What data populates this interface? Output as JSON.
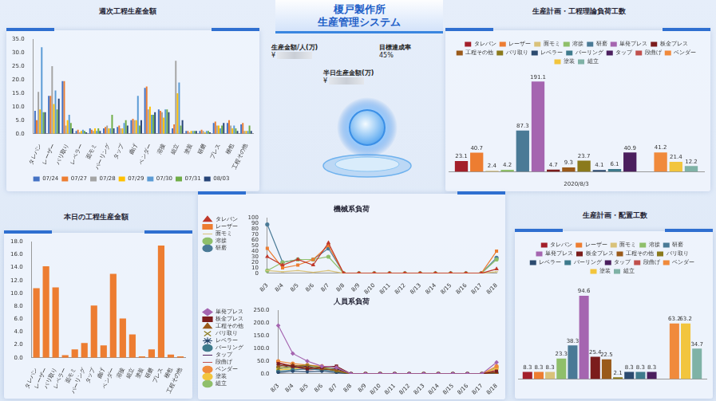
{
  "header": {
    "title": [
      "榎戸製作所",
      "生産管理システム"
    ]
  },
  "kpis": [
    {
      "label": "生産金額/人(万)",
      "value": "¥"
    },
    {
      "label": "目標達成率",
      "value": "45%"
    },
    {
      "label": "半日生産金額(万)",
      "value": "¥"
    }
  ],
  "chart_data": [
    {
      "type": "bar",
      "title": "週次工程生産金額",
      "categories": [
        "タレパン",
        "レーザー",
        "バリ取り",
        "レベラー",
        "面モミ",
        "バーリング",
        "タップ",
        "曲げ",
        "ベンダー",
        "溶接",
        "組立",
        "塗装",
        "研磨",
        "プレス",
        "梱包",
        "工程その他"
      ],
      "series": [
        {
          "name": "07/24",
          "color": "#4472c4",
          "values": [
            8.5,
            14,
            19.5,
            1,
            2,
            2,
            2.5,
            5,
            17,
            9,
            2,
            1,
            1,
            4,
            4,
            3.5
          ]
        },
        {
          "name": "07/27",
          "color": "#ed7d31",
          "values": [
            5,
            14,
            19.5,
            1.5,
            1.5,
            2.5,
            3,
            5.5,
            17.5,
            8.5,
            3.5,
            1,
            1.5,
            4.5,
            5,
            4
          ]
        },
        {
          "name": "07/28",
          "color": "#a5a5a5",
          "values": [
            15.5,
            25,
            3,
            0.5,
            1,
            3,
            2,
            5,
            9,
            8,
            27,
            0.5,
            1,
            3,
            3,
            1
          ]
        },
        {
          "name": "07/29",
          "color": "#ffc000",
          "values": [
            9,
            11,
            5,
            1,
            2,
            2,
            2,
            5,
            10,
            6,
            15,
            1,
            0.5,
            3,
            2,
            1
          ]
        },
        {
          "name": "07/30",
          "color": "#5b9bd5",
          "values": [
            32,
            16,
            7,
            1.5,
            1,
            2,
            4,
            14,
            7,
            9,
            19,
            1,
            1,
            2,
            3,
            1
          ]
        },
        {
          "name": "07/31",
          "color": "#70ad47",
          "values": [
            8,
            9,
            4,
            1,
            2,
            7,
            5,
            3,
            7,
            9,
            3,
            1,
            1,
            3,
            2,
            3
          ]
        },
        {
          "name": "08/03",
          "color": "#264478",
          "values": [
            8,
            13,
            2,
            0.5,
            1,
            2,
            3,
            5,
            8,
            8,
            5,
            1,
            0.5,
            4,
            1,
            1
          ]
        }
      ],
      "ylim": [
        0,
        35
      ],
      "yticks": [
        {
          "value": 0,
          "label": "0.0"
        },
        {
          "value": 5,
          "label": "5.0"
        },
        {
          "value": 10,
          "label": "10.0"
        },
        {
          "value": 15,
          "label": "15.0"
        },
        {
          "value": 20,
          "label": "20.0"
        },
        {
          "value": 25,
          "label": "25.0"
        },
        {
          "value": 30,
          "label": "30.0"
        },
        {
          "value": 35,
          "label": "35.0"
        }
      ],
      "legend": "bottom",
      "grid": false
    },
    {
      "type": "bar",
      "title": "生産計画・工程理論負荷工数",
      "categories": [
        "2020/8/3"
      ],
      "series": [
        {
          "name": "タレパン",
          "color": "#a31f2a",
          "values": [
            23.1
          ]
        },
        {
          "name": "レーザー",
          "color": "#ed7d31",
          "values": [
            40.7
          ]
        },
        {
          "name": "面モミ",
          "color": "#d9c27a",
          "values": [
            2.4
          ]
        },
        {
          "name": "溶接",
          "color": "#8fbf6a",
          "values": [
            4.2
          ]
        },
        {
          "name": "研磨",
          "color": "#4a7a96",
          "values": [
            87.3
          ]
        },
        {
          "name": "単発プレス",
          "color": "#a565b0",
          "values": [
            191.1
          ]
        },
        {
          "name": "板金プレス",
          "color": "#7b1c1c",
          "values": [
            4.7
          ]
        },
        {
          "name": "工程その他",
          "color": "#9a5a1a",
          "values": [
            9.3
          ]
        },
        {
          "name": "バリ取り",
          "color": "#8b7a1c",
          "values": [
            23.7
          ]
        },
        {
          "name": "レベラー",
          "color": "#2b4a6f",
          "values": [
            4.1
          ]
        },
        {
          "name": "バーリング",
          "color": "#3e7a8c",
          "values": [
            6.1
          ]
        },
        {
          "name": "タップ",
          "color": "#4b1f5e",
          "values": [
            40.9
          ]
        },
        {
          "name": "段曲げ",
          "color": "#c0504d",
          "values": [
            null
          ]
        },
        {
          "name": "ベンダー",
          "color": "#f08a3c",
          "values": [
            41.2
          ]
        },
        {
          "name": "塗装",
          "color": "#f2c53d",
          "values": [
            21.4
          ]
        },
        {
          "name": "組立",
          "color": "#7fb2a6",
          "values": [
            12.2
          ]
        }
      ],
      "ylim": [
        0,
        210
      ],
      "legend": "top",
      "data_labels": true,
      "tick_labels": "x",
      "grid": false
    },
    {
      "type": "bar",
      "title": "本日の工程生産金額",
      "categories": [
        "タレパン",
        "レーザー",
        "バリ取り",
        "レベラー",
        "面モミ",
        "バーリング",
        "タップ",
        "曲げ",
        "ベンダー",
        "溶接",
        "組立",
        "塗装",
        "研磨",
        "プレス",
        "梱包",
        "工程その他"
      ],
      "values": [
        10.8,
        14.2,
        10.9,
        0.4,
        1.3,
        2.3,
        8.1,
        1.9,
        13,
        6.1,
        3.6,
        0.2,
        1.3,
        17.4,
        0.5,
        0.2
      ],
      "color": "#ed7d31",
      "ylim": [
        0,
        18
      ],
      "yticks": [
        {
          "value": 0,
          "label": "0.0"
        },
        {
          "value": 2,
          "label": "2.0"
        },
        {
          "value": 4,
          "label": "4.0"
        },
        {
          "value": 6,
          "label": "6.0"
        },
        {
          "value": 8,
          "label": "8.0"
        },
        {
          "value": 10,
          "label": "10.0"
        },
        {
          "value": 12,
          "label": "12.0"
        },
        {
          "value": 14,
          "label": "14.0"
        },
        {
          "value": 16,
          "label": "16.0"
        },
        {
          "value": 18,
          "label": "18.0"
        }
      ],
      "grid": false
    },
    {
      "type": "line",
      "title": "機械系負荷",
      "categories": [
        "8/3",
        "8/4",
        "8/5",
        "8/6",
        "8/7",
        "8/8",
        "8/9",
        "8/10",
        "8/11",
        "8/12",
        "8/13",
        "8/14",
        "8/15",
        "8/16",
        "8/17",
        "8/18"
      ],
      "series": [
        {
          "name": "タレパン",
          "color": "#c0392b",
          "marker": "triangle",
          "values": [
            30,
            15,
            25,
            15,
            55,
            0,
            0,
            0,
            0,
            0,
            0,
            0,
            0,
            0,
            0,
            8
          ]
        },
        {
          "name": "レーザー",
          "color": "#ed7d31",
          "marker": "square",
          "values": [
            45,
            10,
            15,
            25,
            50,
            0,
            0,
            0,
            0,
            0,
            0,
            0,
            0,
            0,
            0,
            40
          ]
        },
        {
          "name": "面モミ",
          "color": "#d9c27a",
          "marker": "dash",
          "values": [
            5,
            3,
            5,
            2,
            5,
            0,
            0,
            0,
            0,
            0,
            0,
            0,
            0,
            0,
            0,
            3
          ]
        },
        {
          "name": "溶接",
          "color": "#8fbf6a",
          "marker": "circle",
          "values": [
            5,
            20,
            25,
            25,
            30,
            0,
            0,
            0,
            0,
            0,
            0,
            0,
            0,
            0,
            0,
            25
          ]
        },
        {
          "name": "研磨",
          "color": "#4a7a96",
          "marker": "circle",
          "values": [
            88,
            20,
            25,
            25,
            45,
            0,
            0,
            0,
            0,
            0,
            0,
            0,
            0,
            0,
            0,
            28
          ]
        }
      ],
      "ylim": [
        0,
        100
      ],
      "yticks": [
        0,
        10,
        20,
        30,
        40,
        50,
        60,
        70,
        80,
        90,
        100
      ],
      "legend": "left",
      "grid": false
    },
    {
      "type": "line",
      "title": "人員系負荷",
      "categories": [
        "8/3",
        "8/4",
        "8/5",
        "8/6",
        "8/7",
        "8/8",
        "8/9",
        "8/10",
        "8/11",
        "8/12",
        "8/13",
        "8/14",
        "8/15",
        "8/16",
        "8/17",
        "8/18"
      ],
      "series": [
        {
          "name": "単発プレス",
          "color": "#a565b0",
          "marker": "diamond",
          "values": [
            190,
            80,
            50,
            30,
            25,
            0,
            0,
            0,
            0,
            0,
            0,
            0,
            0,
            0,
            0,
            45
          ]
        },
        {
          "name": "板金プレス",
          "color": "#7b1c1c",
          "marker": "square",
          "values": [
            40,
            30,
            20,
            25,
            30,
            0,
            0,
            0,
            0,
            0,
            0,
            0,
            0,
            0,
            0,
            10
          ]
        },
        {
          "name": "工程その他",
          "color": "#9a5a1a",
          "marker": "triangle",
          "values": [
            30,
            35,
            25,
            20,
            15,
            0,
            0,
            0,
            0,
            0,
            0,
            0,
            0,
            0,
            0,
            5
          ]
        },
        {
          "name": "バリ取り",
          "color": "#8b7a1c",
          "marker": "cross",
          "values": [
            20,
            30,
            35,
            25,
            10,
            0,
            0,
            0,
            0,
            0,
            0,
            0,
            0,
            0,
            0,
            8
          ]
        },
        {
          "name": "レベラー",
          "color": "#2b4a6f",
          "marker": "star",
          "values": [
            5,
            10,
            8,
            10,
            5,
            0,
            0,
            0,
            0,
            0,
            0,
            0,
            0,
            0,
            0,
            3
          ]
        },
        {
          "name": "バーリング",
          "color": "#3e7a8c",
          "marker": "circle",
          "values": [
            10,
            15,
            20,
            15,
            10,
            0,
            0,
            0,
            0,
            0,
            0,
            0,
            0,
            0,
            0,
            5
          ]
        },
        {
          "name": "タップ",
          "color": "#4b1f5e",
          "marker": "dash",
          "values": [
            35,
            25,
            30,
            15,
            20,
            0,
            0,
            0,
            0,
            0,
            0,
            0,
            0,
            0,
            0,
            5
          ]
        },
        {
          "name": "段曲げ",
          "color": "#c0504d",
          "marker": "dash",
          "values": [
            45,
            30,
            15,
            20,
            10,
            0,
            0,
            0,
            0,
            0,
            0,
            0,
            0,
            0,
            0,
            15
          ]
        },
        {
          "name": "ベンダー",
          "color": "#f08a3c",
          "marker": "circle",
          "values": [
            50,
            40,
            35,
            30,
            25,
            0,
            0,
            0,
            0,
            0,
            0,
            0,
            0,
            0,
            0,
            30
          ]
        },
        {
          "name": "塗装",
          "color": "#f2c53d",
          "marker": "circle",
          "values": [
            15,
            20,
            25,
            20,
            15,
            0,
            0,
            0,
            0,
            0,
            0,
            0,
            0,
            0,
            0,
            20
          ]
        },
        {
          "name": "組立",
          "color": "#8fbf6a",
          "marker": "circle",
          "values": [
            25,
            20,
            30,
            25,
            20,
            0,
            0,
            0,
            0,
            0,
            0,
            0,
            0,
            0,
            0,
            25
          ]
        }
      ],
      "ylim": [
        0,
        250
      ],
      "yticks": [
        {
          "value": 0,
          "label": "0.0"
        },
        {
          "value": 50,
          "label": "50.0"
        },
        {
          "value": 100,
          "label": "100.0"
        },
        {
          "value": 150,
          "label": "150.0"
        },
        {
          "value": 200,
          "label": "200.0"
        },
        {
          "value": 250,
          "label": "250.0"
        }
      ],
      "legend": "left",
      "grid": false
    },
    {
      "type": "bar",
      "title": "生産計画・配置工数",
      "categories": [
        null
      ],
      "series": [
        {
          "name": "タレパン",
          "color": "#a31f2a",
          "values": [
            8.3
          ]
        },
        {
          "name": "レーザー",
          "color": "#ed7d31",
          "values": [
            8.3
          ]
        },
        {
          "name": "面モミ",
          "color": "#d9c27a",
          "values": [
            8.3
          ]
        },
        {
          "name": "溶接",
          "color": "#8fbf6a",
          "values": [
            23.3
          ]
        },
        {
          "name": "研磨",
          "color": "#4a7a96",
          "values": [
            38.3
          ]
        },
        {
          "name": "単発プレス",
          "color": "#a565b0",
          "values": [
            94.6
          ]
        },
        {
          "name": "板金プレス",
          "color": "#7b1c1c",
          "values": [
            25.4
          ]
        },
        {
          "name": "工程その他",
          "color": "#9a5a1a",
          "values": [
            22.5
          ]
        },
        {
          "name": "バリ取り",
          "color": "#8b7a1c",
          "values": [
            2.1
          ]
        },
        {
          "name": "レベラー",
          "color": "#2b4a6f",
          "values": [
            8.3
          ]
        },
        {
          "name": "バーリング",
          "color": "#3e7a8c",
          "values": [
            8.3
          ]
        },
        {
          "name": "タップ",
          "color": "#4b1f5e",
          "values": [
            8.3
          ]
        },
        {
          "name": "段曲げ",
          "color": "#c0504d",
          "values": [
            null
          ]
        },
        {
          "name": "ベンダー",
          "color": "#f08a3c",
          "values": [
            63.2
          ]
        },
        {
          "name": "塗装",
          "color": "#f2c53d",
          "values": [
            63.2
          ]
        },
        {
          "name": "組立",
          "color": "#7fb2a6",
          "values": [
            34.7
          ]
        }
      ],
      "ylim": [
        0,
        110
      ],
      "legend": "top",
      "data_labels": true,
      "tick_labels": "x",
      "grid": false
    }
  ]
}
